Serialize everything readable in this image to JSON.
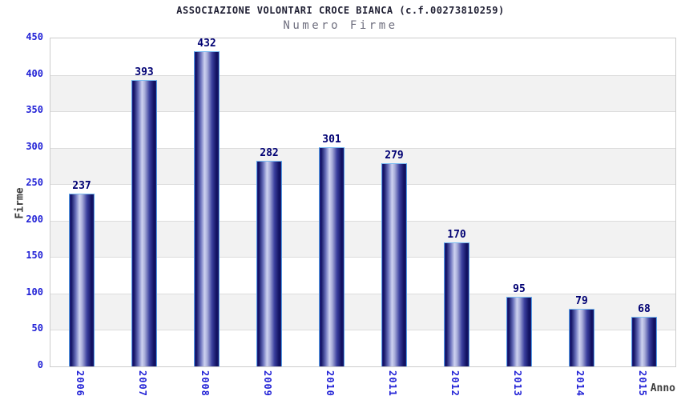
{
  "chart_data": {
    "type": "bar",
    "title": "ASSOCIAZIONE VOLONTARI CROCE BIANCA (c.f.00273810259)",
    "subtitle": "Numero Firme",
    "categories": [
      "2006",
      "2007",
      "2008",
      "2009",
      "2010",
      "2011",
      "2012",
      "2013",
      "2014",
      "2015"
    ],
    "values": [
      237,
      393,
      432,
      282,
      301,
      279,
      170,
      95,
      79,
      68
    ],
    "xlabel": "Anno",
    "ylabel": "Firme",
    "ylim": [
      0,
      450
    ],
    "yticks": [
      0,
      50,
      100,
      150,
      200,
      250,
      300,
      350,
      400,
      450
    ],
    "grid": "horizontal gridlines with alternating white/gray bands",
    "legend_position": "none",
    "bar_labels_shown": true,
    "x_tick_rotation_deg": 90
  },
  "colors": {
    "title_text": "#1f1f33",
    "subtitle_text": "#6e6e7e",
    "tick_text": "#2222d6",
    "value_text": "#000073",
    "axis_title_text": "#3d3d3d",
    "band_white": "#ffffff",
    "band_gray": "#f2f2f2",
    "gridline": "#dcdcdc",
    "plot_border": "#cccccc",
    "bar_border": "#56a0e8",
    "bar_border_top": "#7cbcf2",
    "bar_gradient": "linear-gradient(90deg, #23238a 0%, #101062 6%, #6a71bc 25%, #ced2f0 41%, #a9aeda 52%, #3a3f9e 72%, #0f0f5e 92%, #1b1b70 100%)"
  }
}
